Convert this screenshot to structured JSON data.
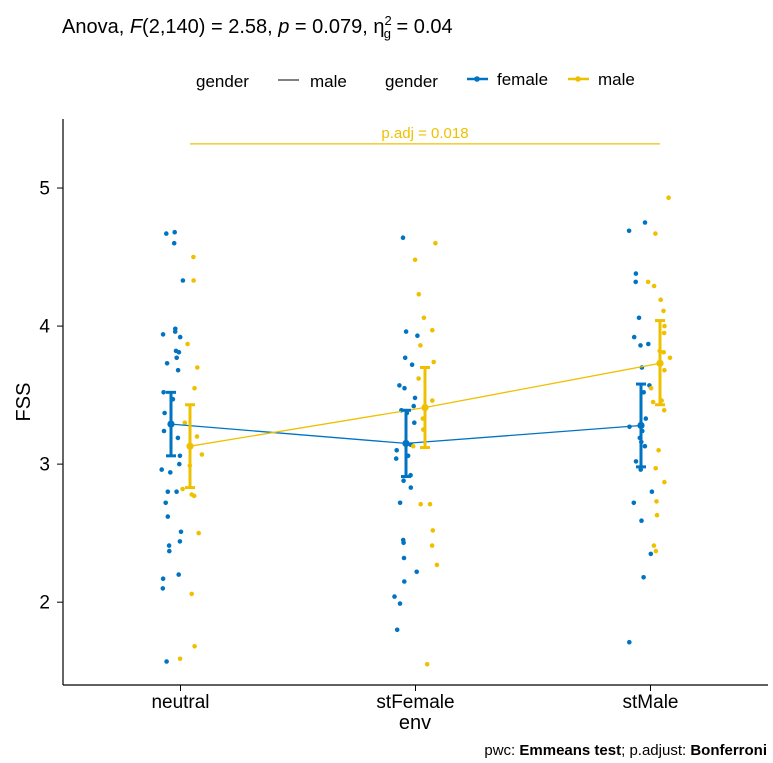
{
  "header": {
    "title_parts": [
      {
        "text": "Anova, ",
        "style": "normal"
      },
      {
        "text": "F",
        "style": "italic"
      },
      {
        "text": "(2,140) = 2.58, ",
        "style": "normal"
      },
      {
        "text": "p",
        "style": "italic"
      },
      {
        "text": " = 0.079, ",
        "style": "normal"
      },
      {
        "text": "η",
        "style": "normal"
      },
      {
        "text": "2",
        "style": "sup"
      },
      {
        "text": "g",
        "style": "sub"
      },
      {
        "text": " = 0.04",
        "style": "normal"
      }
    ]
  },
  "legend": {
    "group1_title": "gender",
    "group1_item": "male",
    "group2_title": "gender",
    "group2_items": [
      "female",
      "male"
    ]
  },
  "caption": {
    "parts": [
      {
        "text": "pwc: ",
        "bold": false
      },
      {
        "text": "Emmeans test",
        "bold": true
      },
      {
        "text": "; p.adjust: ",
        "bold": false
      },
      {
        "text": "Bonferroni",
        "bold": true
      }
    ]
  },
  "chart_data": {
    "type": "line",
    "xlabel": "env",
    "ylabel": "FSS",
    "categories": [
      "neutral",
      "stFemale",
      "stMale"
    ],
    "ylim": [
      1.4,
      5.5
    ],
    "yticks": [
      2,
      3,
      4,
      5
    ],
    "ytick_labels": [
      "2",
      "3",
      "4",
      "5"
    ],
    "colors": {
      "female": "#0073c2",
      "male": "#efc000"
    },
    "series": [
      {
        "name": "female",
        "means": [
          3.29,
          3.15,
          3.28
        ],
        "lower": [
          3.06,
          2.91,
          2.98
        ],
        "upper": [
          3.52,
          3.39,
          3.58
        ],
        "points": [
          [
            4.68,
            4.67,
            4.6,
            4.33,
            3.98,
            3.96,
            3.94,
            3.92,
            3.82,
            3.81,
            3.77,
            3.73,
            3.68,
            3.52,
            3.47,
            3.37,
            3.24,
            3.19,
            3.06,
            3.0,
            2.96,
            2.94,
            2.8,
            2.8,
            2.72,
            2.62,
            2.51,
            2.44,
            2.41,
            2.37,
            2.2,
            2.17,
            2.1,
            1.57
          ],
          [
            4.64,
            3.96,
            3.93,
            3.77,
            3.72,
            3.57,
            3.55,
            3.48,
            3.42,
            3.39,
            3.37,
            3.3,
            3.14,
            3.1,
            3.06,
            3.04,
            2.92,
            2.88,
            2.83,
            2.72,
            2.45,
            2.43,
            2.32,
            2.22,
            2.15,
            2.04,
            1.99,
            1.8
          ],
          [
            4.75,
            4.69,
            4.38,
            4.32,
            4.06,
            3.92,
            3.87,
            3.86,
            3.7,
            3.57,
            3.52,
            3.33,
            3.27,
            3.24,
            3.19,
            3.16,
            3.13,
            3.02,
            2.96,
            2.8,
            2.72,
            2.59,
            2.35,
            2.18,
            1.71
          ]
        ]
      },
      {
        "name": "male",
        "means": [
          3.13,
          3.41,
          3.73
        ],
        "lower": [
          2.83,
          3.12,
          3.43
        ],
        "upper": [
          3.43,
          3.7,
          4.04
        ],
        "points": [
          [
            4.5,
            4.33,
            3.87,
            3.7,
            3.55,
            3.3,
            3.2,
            3.07,
            2.99,
            2.82,
            2.78,
            2.77,
            2.5,
            2.06,
            1.68,
            1.59
          ],
          [
            4.6,
            4.48,
            4.23,
            4.06,
            3.97,
            3.86,
            3.74,
            3.62,
            3.46,
            3.33,
            3.25,
            3.13,
            2.71,
            2.71,
            2.52,
            2.41,
            2.27,
            1.55
          ],
          [
            4.93,
            4.67,
            4.32,
            4.29,
            4.19,
            4.11,
            4.0,
            3.95,
            3.82,
            3.81,
            3.77,
            3.68,
            3.55,
            3.46,
            3.45,
            3.39,
            3.1,
            2.97,
            2.87,
            2.73,
            2.63,
            2.41,
            2.37
          ]
        ]
      }
    ],
    "annotation": {
      "label": "p.adj = 0.018",
      "y": 5.32,
      "from": "neutral",
      "to": "stMale"
    }
  }
}
